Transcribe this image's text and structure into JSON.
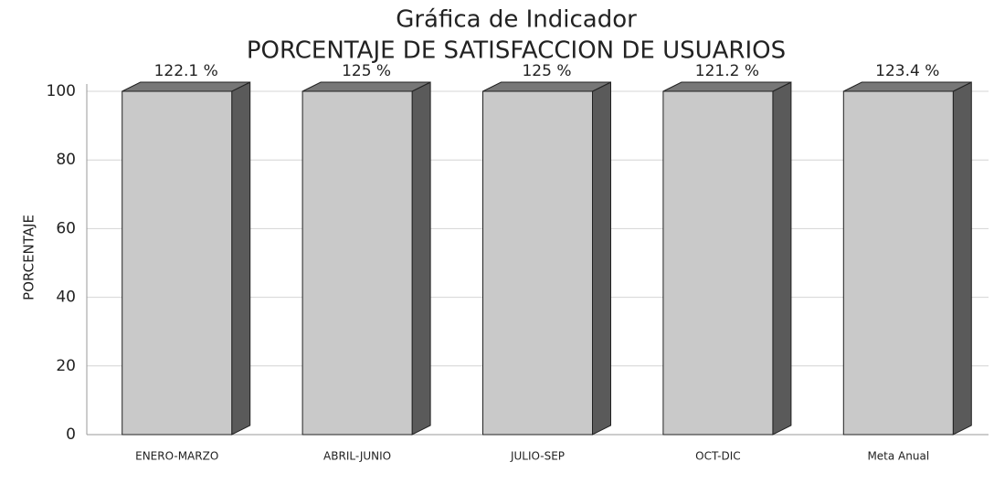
{
  "chart_data": {
    "type": "bar3d",
    "title": "Gráfica de Indicador",
    "subtitle": "PORCENTAJE DE SATISFACCION DE USUARIOS",
    "y_label": "PORCENTAJE",
    "categories": [
      "ENERO-MARZO",
      "ABRIL-JUNIO",
      "JULIO-SEP",
      "OCT-DIC",
      "Meta Anual"
    ],
    "values": [
      122.1,
      125,
      125,
      121.2,
      123.4
    ],
    "value_labels": [
      "122.1 %",
      "125 %",
      "125 %",
      "121.2 %",
      "123.4 %"
    ],
    "color": "#c9c9c9",
    "side_color": "#5a5a5a",
    "ylim": [
      0,
      100
    ],
    "yticks": [
      0,
      20,
      40,
      60,
      80,
      100
    ],
    "grid": true
  }
}
